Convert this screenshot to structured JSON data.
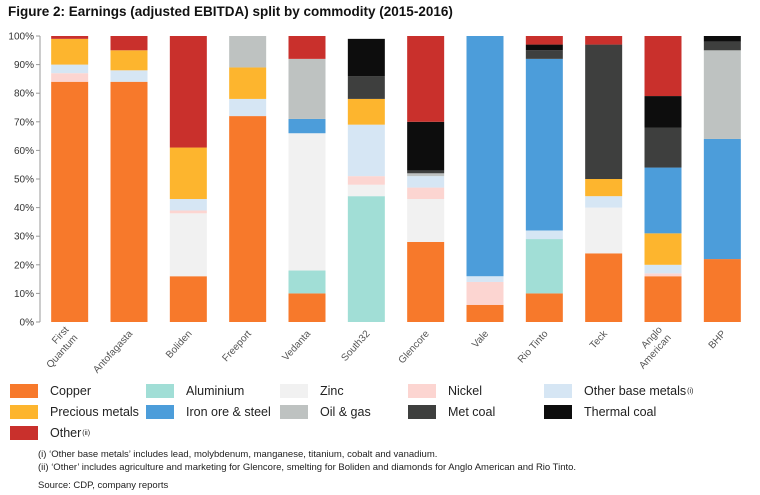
{
  "figure": {
    "title": "Figure 2: Earnings (adjusted EBITDA) split by commodity (2015-2016)",
    "notes": [
      "(i) ‘Other base metals’ includes lead, molybdenum, manganese, titanium, cobalt and vanadium.",
      "(ii) ‘Other’ includes agriculture and marketing for Glencore, smelting for Boliden and diamonds for Anglo American and Rio Tinto."
    ],
    "source": "Source: CDP, company reports"
  },
  "chart_data": {
    "type": "bar",
    "stacked": true,
    "title": "Figure 2: Earnings (adjusted EBITDA) split by commodity (2015-2016)",
    "xlabel": "",
    "ylabel": "",
    "ylim": [
      0,
      100
    ],
    "yticks": [
      "0%",
      "10%",
      "20%",
      "30%",
      "40%",
      "50%",
      "60%",
      "70%",
      "80%",
      "90%",
      "100%"
    ],
    "categories": [
      "First Quantum",
      "Antofagasta",
      "Boliden",
      "Freeport",
      "Vedanta",
      "South32",
      "Glencore",
      "Vale",
      "Rio Tinto",
      "Teck",
      "Anglo American",
      "BHP"
    ],
    "category_lines": [
      [
        "First",
        "Quantum"
      ],
      [
        "Antofagasta"
      ],
      [
        "Boliden"
      ],
      [
        "Freeport"
      ],
      [
        "Vedanta"
      ],
      [
        "South32"
      ],
      [
        "Glencore"
      ],
      [
        "Vale"
      ],
      [
        "Rio Tinto"
      ],
      [
        "Teck"
      ],
      [
        "Anglo",
        "American"
      ],
      [
        "BHP"
      ]
    ],
    "legend_position": "bottom",
    "grid": false,
    "series": [
      {
        "name": "Copper",
        "color": "#f7792b",
        "values": [
          84,
          84,
          16,
          72,
          10,
          0,
          28,
          6,
          10,
          24,
          16,
          22
        ]
      },
      {
        "name": "Aluminium",
        "color": "#a1ded6",
        "values": [
          0,
          0,
          0,
          0,
          8,
          44,
          0,
          0,
          19,
          0,
          0,
          0
        ]
      },
      {
        "name": "Zinc",
        "color": "#f1f1f1",
        "values": [
          0,
          0,
          22,
          0,
          48,
          4,
          15,
          0,
          0,
          16,
          0,
          0
        ]
      },
      {
        "name": "Nickel",
        "color": "#fcd5d1",
        "values": [
          3,
          0,
          1,
          0,
          0,
          3,
          4,
          8,
          0,
          0,
          1,
          0
        ]
      },
      {
        "name": "Other base metals",
        "color": "#d6e6f4",
        "values": [
          3,
          4,
          4,
          6,
          0,
          18,
          4,
          2,
          3,
          4,
          3,
          0
        ]
      },
      {
        "name": "Precious metals",
        "color": "#fdb52e",
        "values": [
          9,
          7,
          18,
          11,
          0,
          9,
          0,
          0,
          0,
          6,
          11,
          0
        ]
      },
      {
        "name": "Iron ore & steel",
        "color": "#4c9dda",
        "values": [
          0,
          0,
          0,
          0,
          5,
          0,
          0,
          84,
          60,
          0,
          23,
          42
        ]
      },
      {
        "name": "Oil & gas",
        "color": "#bec2c1",
        "values": [
          0,
          0,
          0,
          11,
          21,
          0,
          1,
          0,
          0,
          0,
          0,
          31
        ]
      },
      {
        "name": "Met coal",
        "color": "#3e3f3e",
        "values": [
          0,
          0,
          0,
          0,
          0,
          8,
          1,
          0,
          3,
          47,
          14,
          3
        ]
      },
      {
        "name": "Thermal coal",
        "color": "#0d0d0d",
        "values": [
          0,
          0,
          0,
          0,
          0,
          13,
          17,
          0,
          2,
          0,
          11,
          2
        ]
      },
      {
        "name": "Other",
        "color": "#c9302c",
        "values": [
          1,
          5,
          39,
          0,
          8,
          0,
          30,
          0,
          3,
          3,
          21,
          0
        ]
      }
    ],
    "legend_labels": [
      {
        "text": "Copper",
        "sup": ""
      },
      {
        "text": "Aluminium",
        "sup": ""
      },
      {
        "text": "Zinc",
        "sup": ""
      },
      {
        "text": "Nickel",
        "sup": ""
      },
      {
        "text": "Other base metals",
        "sup": "(i)"
      },
      {
        "text": "Precious metals",
        "sup": ""
      },
      {
        "text": "Iron ore & steel",
        "sup": ""
      },
      {
        "text": "Oil & gas",
        "sup": ""
      },
      {
        "text": "Met coal",
        "sup": ""
      },
      {
        "text": "Thermal coal",
        "sup": ""
      },
      {
        "text": "Other",
        "sup": "(ii)"
      }
    ]
  }
}
